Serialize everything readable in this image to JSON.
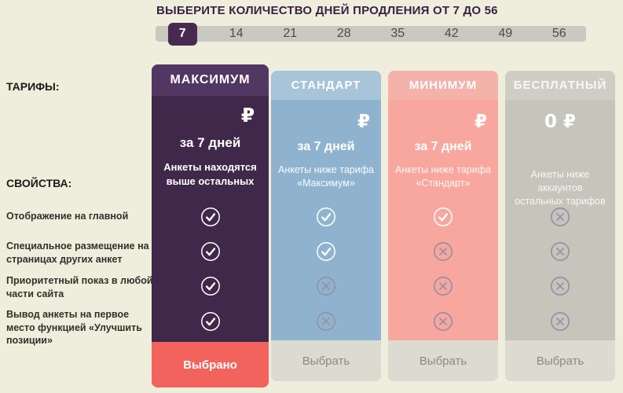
{
  "header": {
    "title": "ВЫБЕРИТЕ КОЛИЧЕСТВО ДНЕЙ ПРОДЛЕНИЯ ОТ 7 ДО 56",
    "day_options": [
      "7",
      "14",
      "21",
      "28",
      "35",
      "42",
      "49",
      "56"
    ],
    "selected_day": "7"
  },
  "labels": {
    "tariffs": "ТАРИФЫ:",
    "properties": "СВОЙСТВА:"
  },
  "features": [
    "Отображение на главной",
    "Специальное размещение на страницах других анкет",
    "Приоритетный показ в любой части сайта",
    "Вывод анкеты на первое место функцией «Улучшить позиции»"
  ],
  "plans": [
    {
      "name": "МАКСИМУМ",
      "price": "₽",
      "period": "за 7 дней",
      "description": "Анкеты находятся выше остальных",
      "features": [
        true,
        true,
        true,
        true
      ],
      "button_label": "Выбрано",
      "selected": true,
      "colors": {
        "header": "#523763",
        "body": "#3f2849",
        "button": "#f3635e",
        "button_text": "#ffffff",
        "header_text": "#ffffff"
      }
    },
    {
      "name": "СТАНДАРТ",
      "price": "₽",
      "period": "за 7 дней",
      "description": "Анкеты ниже тарифа «Максимум»",
      "features": [
        true,
        true,
        false,
        false
      ],
      "button_label": "Выбрать",
      "selected": false,
      "colors": {
        "header": "#a7c4d9",
        "body": "#8fb3cf",
        "button": "#dcdbd1",
        "button_text": "#8b8b87",
        "header_text": "#ffffff"
      }
    },
    {
      "name": "МИНИМУМ",
      "price": "₽",
      "period": "за 7 дней",
      "description": "Анкеты ниже тарифа «Стандарт»",
      "features": [
        true,
        false,
        false,
        false
      ],
      "button_label": "Выбрать",
      "selected": false,
      "colors": {
        "header": "#f5b2ab",
        "body": "#f8a79e",
        "button": "#dcdbd1",
        "button_text": "#8b8b87",
        "header_text": "#ffffff"
      }
    },
    {
      "name": "БЕСПЛАТНЫЙ",
      "price": "0 ₽",
      "period": "",
      "description": "Анкеты ниже аккаунтов остальных тарифов",
      "features": [
        false,
        false,
        false,
        false
      ],
      "button_label": "Выбрать",
      "selected": false,
      "colors": {
        "header": "#cfcec5",
        "body": "#c6c5bb",
        "button": "#dcdbd1",
        "button_text": "#8b8b87",
        "header_text": "rgba(255,255,255,0.82)"
      }
    }
  ],
  "icons": {
    "check": "check-circle",
    "cross": "cross-circle"
  },
  "colors": {
    "background": "#efeedd",
    "title_text": "#3a2145",
    "day_bar": "#c9c8c1",
    "day_text": "#4b4b4b",
    "day_selected_bg": "#482a50",
    "day_selected_text": "#ffffff",
    "check": "#ffffff",
    "cross": "#9b91a7"
  }
}
